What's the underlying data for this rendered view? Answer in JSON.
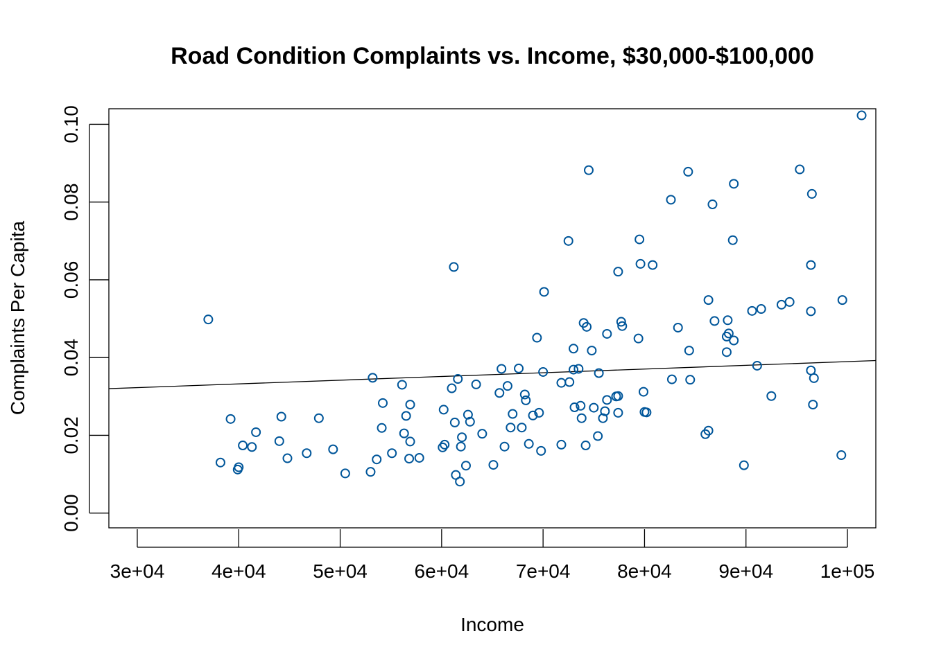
{
  "chart_data": {
    "type": "scatter",
    "title": "Road Condition Complaints vs. Income, $30,000-$100,000",
    "xlabel": "Income",
    "ylabel": "Complaints Per Capita",
    "xlim": [
      27200,
      102800
    ],
    "ylim": [
      -0.0038,
      0.104
    ],
    "x_ticks": [
      30000,
      40000,
      50000,
      60000,
      70000,
      80000,
      90000,
      100000
    ],
    "x_tick_labels": [
      "3e+04",
      "4e+04",
      "5e+04",
      "6e+04",
      "7e+04",
      "8e+04",
      "9e+04",
      "1e+05"
    ],
    "y_ticks": [
      0.0,
      0.02,
      0.04,
      0.06,
      0.08,
      0.1
    ],
    "y_tick_labels": [
      "0.00",
      "0.02",
      "0.04",
      "0.06",
      "0.08",
      "0.10"
    ],
    "grid": false,
    "point_color": "#00569a",
    "line_color": "#000000",
    "regression_line": {
      "intercept": 0.0294,
      "slope": 9.56e-08
    },
    "points": [
      [
        37000,
        0.0498
      ],
      [
        38200,
        0.013
      ],
      [
        39200,
        0.0242
      ],
      [
        39900,
        0.0112
      ],
      [
        40000,
        0.0118
      ],
      [
        40400,
        0.0174
      ],
      [
        41300,
        0.017
      ],
      [
        41700,
        0.0208
      ],
      [
        44000,
        0.0185
      ],
      [
        44200,
        0.0248
      ],
      [
        44800,
        0.0141
      ],
      [
        46700,
        0.0154
      ],
      [
        47900,
        0.0244
      ],
      [
        49300,
        0.0164
      ],
      [
        50500,
        0.0102
      ],
      [
        53000,
        0.0106
      ],
      [
        53200,
        0.0348
      ],
      [
        53600,
        0.0138
      ],
      [
        54100,
        0.0219
      ],
      [
        54200,
        0.0283
      ],
      [
        55100,
        0.0154
      ],
      [
        56100,
        0.033
      ],
      [
        56300,
        0.0205
      ],
      [
        56500,
        0.025
      ],
      [
        56800,
        0.014
      ],
      [
        56900,
        0.0279
      ],
      [
        56900,
        0.0184
      ],
      [
        57800,
        0.0142
      ],
      [
        60100,
        0.0169
      ],
      [
        60200,
        0.0266
      ],
      [
        60300,
        0.0176
      ],
      [
        61000,
        0.0321
      ],
      [
        61200,
        0.0633
      ],
      [
        61300,
        0.0233
      ],
      [
        61400,
        0.0098
      ],
      [
        61600,
        0.0345
      ],
      [
        61800,
        0.0081
      ],
      [
        61900,
        0.0171
      ],
      [
        62000,
        0.0195
      ],
      [
        62400,
        0.0122
      ],
      [
        62600,
        0.0253
      ],
      [
        62800,
        0.0235
      ],
      [
        63400,
        0.0331
      ],
      [
        64000,
        0.0204
      ],
      [
        65100,
        0.0124
      ],
      [
        65700,
        0.0309
      ],
      [
        65900,
        0.0371
      ],
      [
        66200,
        0.0171
      ],
      [
        66500,
        0.0327
      ],
      [
        66800,
        0.022
      ],
      [
        67000,
        0.0255
      ],
      [
        67600,
        0.0372
      ],
      [
        67900,
        0.022
      ],
      [
        68200,
        0.0305
      ],
      [
        68300,
        0.029
      ],
      [
        68600,
        0.0178
      ],
      [
        69000,
        0.0251
      ],
      [
        69400,
        0.0451
      ],
      [
        69600,
        0.0258
      ],
      [
        69800,
        0.016
      ],
      [
        70000,
        0.0363
      ],
      [
        70100,
        0.0569
      ],
      [
        71800,
        0.0335
      ],
      [
        71800,
        0.0176
      ],
      [
        72500,
        0.07
      ],
      [
        72600,
        0.0337
      ],
      [
        73000,
        0.0369
      ],
      [
        73000,
        0.0423
      ],
      [
        73100,
        0.0272
      ],
      [
        73500,
        0.0371
      ],
      [
        73700,
        0.0276
      ],
      [
        73800,
        0.0244
      ],
      [
        74000,
        0.0489
      ],
      [
        74200,
        0.0174
      ],
      [
        74300,
        0.0479
      ],
      [
        74500,
        0.0882
      ],
      [
        74800,
        0.0418
      ],
      [
        75000,
        0.0271
      ],
      [
        75400,
        0.0198
      ],
      [
        75500,
        0.036
      ],
      [
        75900,
        0.0244
      ],
      [
        76100,
        0.0262
      ],
      [
        76300,
        0.0461
      ],
      [
        76300,
        0.0291
      ],
      [
        77200,
        0.03
      ],
      [
        77400,
        0.0621
      ],
      [
        77400,
        0.0301
      ],
      [
        77400,
        0.0258
      ],
      [
        77700,
        0.0492
      ],
      [
        77800,
        0.0481
      ],
      [
        79400,
        0.0449
      ],
      [
        79500,
        0.0704
      ],
      [
        79600,
        0.0641
      ],
      [
        79900,
        0.0312
      ],
      [
        80000,
        0.026
      ],
      [
        80200,
        0.0259
      ],
      [
        80800,
        0.0638
      ],
      [
        82600,
        0.0806
      ],
      [
        82700,
        0.0344
      ],
      [
        83300,
        0.0477
      ],
      [
        84300,
        0.0878
      ],
      [
        84400,
        0.0418
      ],
      [
        84500,
        0.0343
      ],
      [
        86000,
        0.0203
      ],
      [
        86300,
        0.0212
      ],
      [
        86300,
        0.0548
      ],
      [
        86700,
        0.0794
      ],
      [
        86900,
        0.0494
      ],
      [
        88100,
        0.0454
      ],
      [
        88100,
        0.0414
      ],
      [
        88200,
        0.0496
      ],
      [
        88300,
        0.0462
      ],
      [
        88700,
        0.0702
      ],
      [
        88800,
        0.0847
      ],
      [
        88800,
        0.0444
      ],
      [
        89800,
        0.0123
      ],
      [
        90600,
        0.052
      ],
      [
        91100,
        0.0379
      ],
      [
        91500,
        0.0525
      ],
      [
        92500,
        0.0301
      ],
      [
        93500,
        0.0536
      ],
      [
        94300,
        0.0543
      ],
      [
        95300,
        0.0884
      ],
      [
        96400,
        0.0638
      ],
      [
        96400,
        0.0519
      ],
      [
        96400,
        0.0367
      ],
      [
        96500,
        0.0821
      ],
      [
        96600,
        0.0279
      ],
      [
        96700,
        0.0347
      ],
      [
        99400,
        0.0149
      ],
      [
        99500,
        0.0548
      ],
      [
        101400,
        0.1023
      ]
    ]
  }
}
